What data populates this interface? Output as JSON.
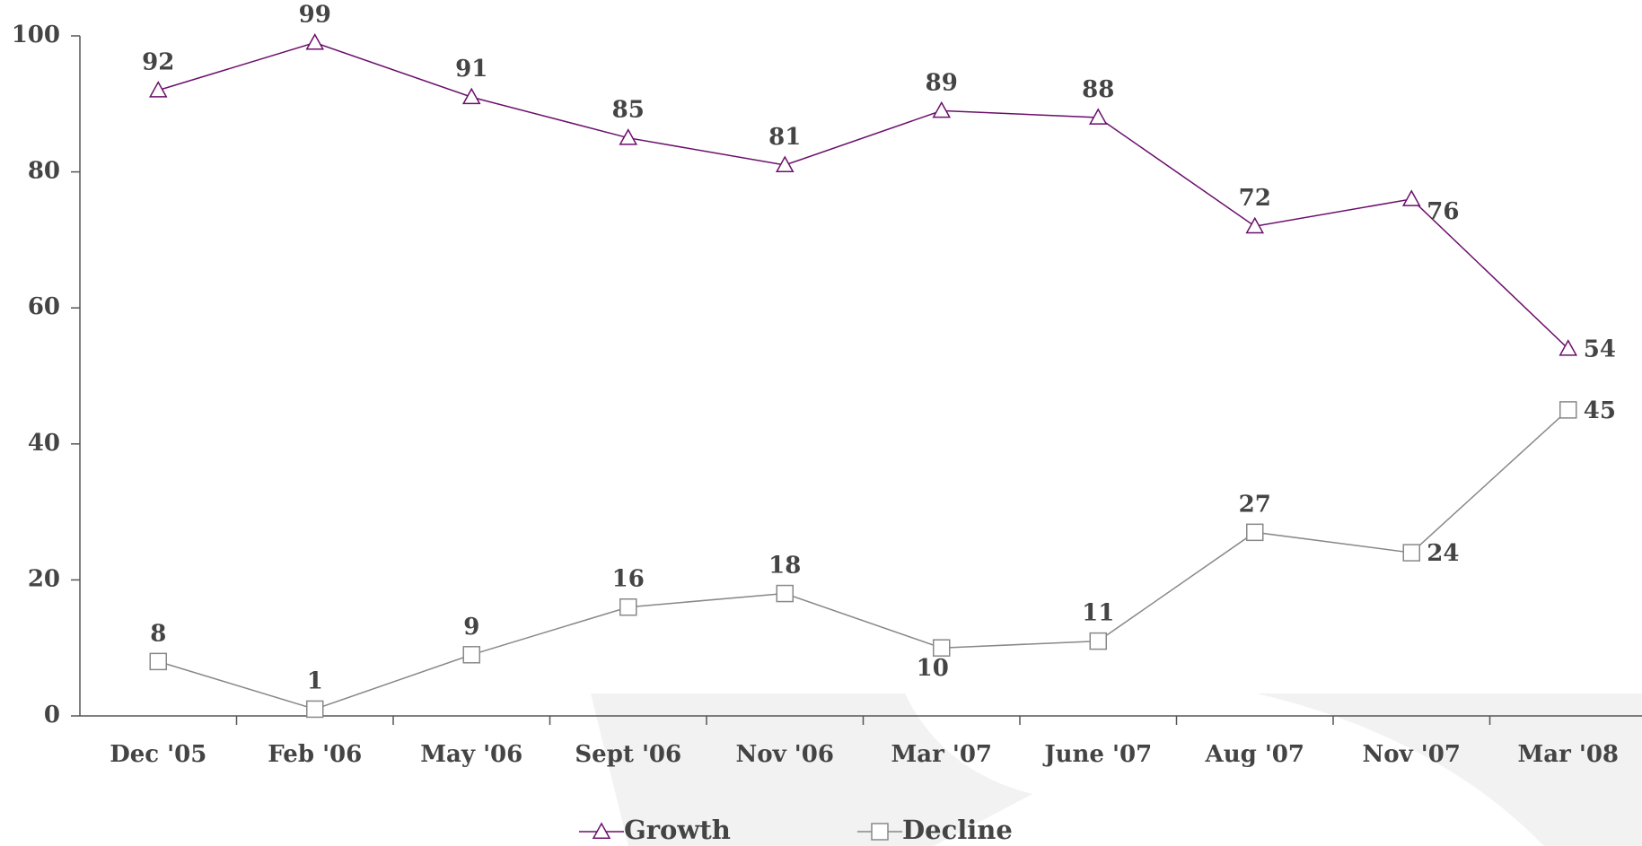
{
  "chart_data": {
    "type": "line",
    "categories": [
      "Dec '05",
      "Feb '06",
      "May '06",
      "Sept '06",
      "Nov '06",
      "Mar '07",
      "June '07",
      "Aug '07",
      "Nov '07",
      "Mar '08"
    ],
    "series": [
      {
        "name": "Growth",
        "color": "#6b0f6b",
        "marker": "triangle",
        "values": [
          92,
          99,
          91,
          85,
          81,
          89,
          88,
          72,
          76,
          54
        ]
      },
      {
        "name": "Decline",
        "color": "#888888",
        "marker": "square",
        "values": [
          8,
          1,
          9,
          16,
          18,
          10,
          11,
          27,
          24,
          45
        ]
      }
    ],
    "ylim": [
      0,
      100
    ],
    "yticks": [
      0,
      20,
      40,
      60,
      80,
      100
    ],
    "grid": false,
    "legend": "bottom"
  }
}
